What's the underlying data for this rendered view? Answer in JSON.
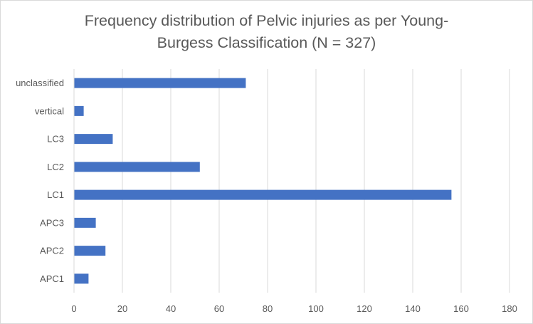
{
  "chart_data": {
    "type": "bar",
    "orientation": "horizontal",
    "title_lines": [
      "Frequency distribution of Pelvic injuries as per Young-",
      "Burgess Classification (N = 327)"
    ],
    "categories": [
      "APC1",
      "APC2",
      "APC3",
      "LC1",
      "LC2",
      "LC3",
      "vertical",
      "unclassified"
    ],
    "values": [
      6,
      13,
      9,
      156,
      52,
      16,
      4,
      71
    ],
    "xlim": [
      0,
      180
    ],
    "xticks": [
      "0",
      "20",
      "40",
      "60",
      "80",
      "100",
      "120",
      "140",
      "160",
      "180"
    ],
    "xlabel": "",
    "ylabel": "",
    "grid": true,
    "legend": "none",
    "bar_color": "#4472c4",
    "grid_color": "#d9d9d9"
  }
}
